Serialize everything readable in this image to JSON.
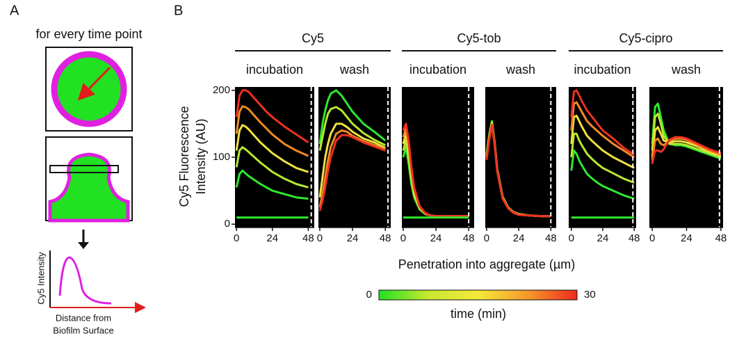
{
  "panel_a": {
    "label": "A",
    "heading": "for every time point",
    "y_label": "Cy5 Intensity",
    "x_label": [
      "Distance from",
      "Biofilm Surface"
    ]
  },
  "panel_b": {
    "label": "B",
    "y_label": [
      "Cy5 Fluorescence",
      "Intensity (AU)"
    ],
    "x_label": "Penetration into aggregate (µm)",
    "groups": [
      "Cy5",
      "Cy5-tob",
      "Cy5-cipro"
    ],
    "colorbar": {
      "lim": [
        0,
        30
      ],
      "ticks": [
        0,
        30
      ],
      "label": "time (min)",
      "colors": [
        "#22e022",
        "#c8e830",
        "#f5e83a",
        "#f59a2a",
        "#ee2a1e"
      ]
    }
  },
  "chart_data": [
    {
      "type": "line",
      "title": "incubation",
      "x": [
        0,
        2,
        4,
        6,
        8,
        12,
        16,
        20,
        24,
        32,
        40,
        48
      ],
      "xlim": [
        -1,
        52
      ],
      "xticks": [
        0,
        24,
        48
      ],
      "ylim": [
        -5,
        205
      ],
      "yticks": [
        0,
        100,
        200
      ],
      "vline": 50,
      "series": [
        {
          "color": "#2ee82e",
          "values": [
            55,
            75,
            80,
            76,
            72,
            66,
            60,
            55,
            50,
            45,
            40,
            38
          ]
        },
        {
          "color": "#b8e82e",
          "values": [
            85,
            110,
            115,
            112,
            108,
            100,
            92,
            85,
            78,
            68,
            60,
            55
          ]
        },
        {
          "color": "#f0e040",
          "values": [
            110,
            140,
            148,
            146,
            142,
            132,
            122,
            114,
            106,
            94,
            84,
            78
          ]
        },
        {
          "color": "#f08a28",
          "values": [
            135,
            168,
            176,
            175,
            172,
            162,
            152,
            143,
            134,
            120,
            110,
            102
          ]
        },
        {
          "color": "#ee3020",
          "values": [
            160,
            192,
            200,
            200,
            198,
            188,
            178,
            168,
            160,
            146,
            134,
            122
          ]
        },
        {
          "color": "#2ee82e",
          "values": [
            10,
            10,
            10,
            10,
            10,
            10,
            10,
            10,
            10,
            10,
            10,
            10
          ]
        }
      ]
    },
    {
      "type": "line",
      "title": "wash",
      "x": [
        0,
        2,
        4,
        6,
        8,
        12,
        16,
        20,
        24,
        32,
        40,
        48
      ],
      "xlim": [
        -1,
        52
      ],
      "xticks": [
        0,
        24,
        48
      ],
      "ylim": [
        -5,
        205
      ],
      "vline": 50,
      "series": [
        {
          "color": "#2ee82e",
          "values": [
            120,
            150,
            170,
            185,
            195,
            200,
            192,
            180,
            168,
            150,
            138,
            125
          ]
        },
        {
          "color": "#b8e82e",
          "values": [
            110,
            130,
            150,
            165,
            172,
            175,
            170,
            160,
            150,
            136,
            126,
            118
          ]
        },
        {
          "color": "#f0e040",
          "values": [
            40,
            70,
            100,
            120,
            135,
            150,
            150,
            145,
            138,
            128,
            122,
            114
          ]
        },
        {
          "color": "#f08a28",
          "values": [
            25,
            45,
            70,
            95,
            115,
            135,
            140,
            138,
            132,
            124,
            118,
            112
          ]
        },
        {
          "color": "#ee3020",
          "values": [
            20,
            35,
            55,
            80,
            100,
            125,
            133,
            133,
            130,
            122,
            116,
            110
          ]
        }
      ]
    },
    {
      "type": "line",
      "title": "incubation",
      "x": [
        0,
        2,
        4,
        6,
        8,
        12,
        16,
        20,
        24,
        32,
        40,
        48
      ],
      "xlim": [
        -1,
        52
      ],
      "xticks": [
        0,
        24,
        48
      ],
      "ylim": [
        -5,
        205
      ],
      "vline": 48,
      "series": [
        {
          "color": "#2ee82e",
          "values": [
            100,
            115,
            90,
            60,
            40,
            22,
            15,
            13,
            12,
            12,
            12,
            12
          ]
        },
        {
          "color": "#b8e82e",
          "values": [
            110,
            125,
            100,
            68,
            44,
            24,
            16,
            13,
            12,
            12,
            12,
            12
          ]
        },
        {
          "color": "#f0e040",
          "values": [
            120,
            135,
            110,
            74,
            48,
            25,
            16,
            13,
            12,
            12,
            12,
            12
          ]
        },
        {
          "color": "#f08a28",
          "values": [
            130,
            143,
            118,
            80,
            52,
            26,
            16,
            13,
            12,
            12,
            12,
            12
          ]
        },
        {
          "color": "#ee3020",
          "values": [
            140,
            150,
            125,
            85,
            55,
            27,
            17,
            13,
            12,
            12,
            12,
            12
          ]
        },
        {
          "color": "#2ee82e",
          "values": [
            10,
            10,
            10,
            10,
            10,
            10,
            10,
            10,
            10,
            10,
            10,
            10
          ]
        }
      ]
    },
    {
      "type": "line",
      "title": "wash",
      "x": [
        0,
        2,
        4,
        6,
        8,
        12,
        16,
        20,
        24,
        32,
        40,
        48
      ],
      "xlim": [
        -1,
        52
      ],
      "xticks": [
        0,
        24,
        48
      ],
      "ylim": [
        -5,
        205
      ],
      "vline": 48,
      "series": [
        {
          "color": "#2ee82e",
          "values": [
            104,
            134,
            154,
            122,
            82,
            41,
            25,
            18,
            15,
            13,
            12,
            12
          ]
        },
        {
          "color": "#b8e82e",
          "values": [
            102,
            132,
            152,
            121,
            81,
            40,
            25,
            18,
            15,
            13,
            12,
            12
          ]
        },
        {
          "color": "#f0e040",
          "values": [
            100,
            130,
            150,
            120,
            80,
            40,
            25,
            18,
            15,
            13,
            12,
            12
          ]
        },
        {
          "color": "#f08a28",
          "values": [
            98,
            128,
            149,
            119,
            79,
            39,
            24,
            17,
            14,
            13,
            12,
            12
          ]
        },
        {
          "color": "#ee3020",
          "values": [
            96,
            126,
            148,
            118,
            78,
            38,
            24,
            17,
            14,
            13,
            12,
            12
          ]
        }
      ]
    },
    {
      "type": "line",
      "title": "incubation",
      "x": [
        0,
        2,
        4,
        6,
        8,
        12,
        16,
        20,
        24,
        32,
        40,
        48
      ],
      "xlim": [
        -2,
        49.5
      ],
      "xticks": [
        0,
        24,
        48
      ],
      "ylim": [
        -5,
        205
      ],
      "vline": 47,
      "series": [
        {
          "color": "#2ee82e",
          "values": [
            80,
            110,
            105,
            95,
            88,
            75,
            68,
            62,
            57,
            50,
            43,
            38
          ]
        },
        {
          "color": "#b8e82e",
          "values": [
            100,
            135,
            135,
            125,
            118,
            105,
            97,
            90,
            84,
            76,
            68,
            62
          ]
        },
        {
          "color": "#f0e040",
          "values": [
            120,
            160,
            162,
            154,
            146,
            132,
            124,
            117,
            110,
            100,
            92,
            84
          ]
        },
        {
          "color": "#f08a28",
          "values": [
            140,
            180,
            182,
            175,
            168,
            154,
            146,
            139,
            132,
            120,
            110,
            100
          ]
        },
        {
          "color": "#ee3020",
          "values": [
            160,
            198,
            200,
            192,
            184,
            170,
            160,
            150,
            140,
            128,
            114,
            104
          ]
        },
        {
          "color": "#2ee82e",
          "values": [
            10,
            10,
            10,
            10,
            10,
            10,
            10,
            10,
            10,
            10,
            10,
            10
          ]
        }
      ]
    },
    {
      "type": "line",
      "title": "wash",
      "x": [
        0,
        2,
        4,
        6,
        8,
        12,
        16,
        20,
        24,
        32,
        40,
        48
      ],
      "xlim": [
        -2,
        49.5
      ],
      "xticks": [
        0,
        24,
        48
      ],
      "ylim": [
        -5,
        205
      ],
      "vline": 47,
      "series": [
        {
          "color": "#2ee82e",
          "values": [
            120,
            175,
            180,
            160,
            140,
            120,
            118,
            118,
            116,
            110,
            104,
            98
          ]
        },
        {
          "color": "#b8e82e",
          "values": [
            110,
            160,
            165,
            150,
            132,
            120,
            120,
            120,
            118,
            112,
            106,
            100
          ]
        },
        {
          "color": "#f0e040",
          "values": [
            100,
            140,
            145,
            135,
            125,
            122,
            124,
            124,
            122,
            116,
            108,
            102
          ]
        },
        {
          "color": "#f08a28",
          "values": [
            95,
            125,
            128,
            120,
            118,
            124,
            128,
            128,
            126,
            118,
            110,
            104
          ]
        },
        {
          "color": "#ee3020",
          "values": [
            90,
            110,
            110,
            108,
            112,
            126,
            130,
            130,
            128,
            120,
            112,
            106
          ]
        }
      ]
    }
  ]
}
